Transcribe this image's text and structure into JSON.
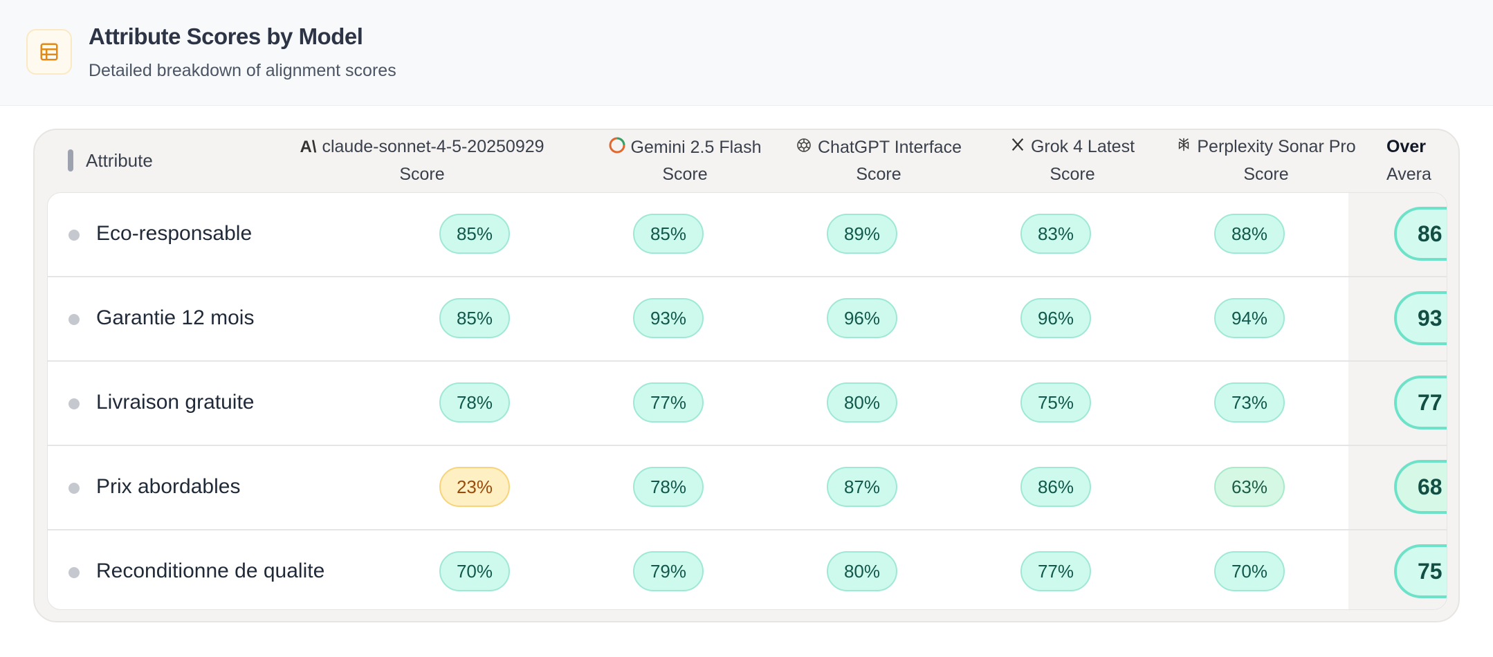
{
  "header": {
    "title": "Attribute Scores by Model",
    "subtitle": "Detailed breakdown of alignment scores",
    "icon": "table-icon",
    "accent": "#e08a1a"
  },
  "table": {
    "attribute_header": "Attribute",
    "models": [
      {
        "name": "claude-sonnet-4-5-20250929",
        "sub": "Score",
        "icon": "anthropic-icon"
      },
      {
        "name": "Gemini 2.5 Flash",
        "sub": "Score",
        "icon": "gemini-icon"
      },
      {
        "name": "ChatGPT Interface",
        "sub": "Score",
        "icon": "openai-icon"
      },
      {
        "name": "Grok 4 Latest",
        "sub": "Score",
        "icon": "x-icon"
      },
      {
        "name": "Perplexity Sonar Pro",
        "sub": "Score",
        "icon": "perplexity-icon"
      }
    ],
    "overall": {
      "name": "Over",
      "sub": "Avera"
    },
    "rows": [
      {
        "label": "Eco-responsable",
        "scores": [
          "85%",
          "85%",
          "89%",
          "83%",
          "88%"
        ],
        "avg": "86"
      },
      {
        "label": "Garantie 12 mois",
        "scores": [
          "85%",
          "93%",
          "96%",
          "96%",
          "94%"
        ],
        "avg": "93"
      },
      {
        "label": "Livraison gratuite",
        "scores": [
          "78%",
          "77%",
          "80%",
          "75%",
          "73%"
        ],
        "avg": "77"
      },
      {
        "label": "Prix abordables",
        "scores": [
          "23%",
          "78%",
          "87%",
          "86%",
          "63%"
        ],
        "avg": "68"
      },
      {
        "label": "Reconditionne de qualite",
        "scores": [
          "70%",
          "79%",
          "80%",
          "77%",
          "70%"
        ],
        "avg": "75"
      }
    ],
    "colors": {
      "good": "#cdfaec",
      "warn": "#fef0c3",
      "mid": "#d4f8e4"
    }
  }
}
